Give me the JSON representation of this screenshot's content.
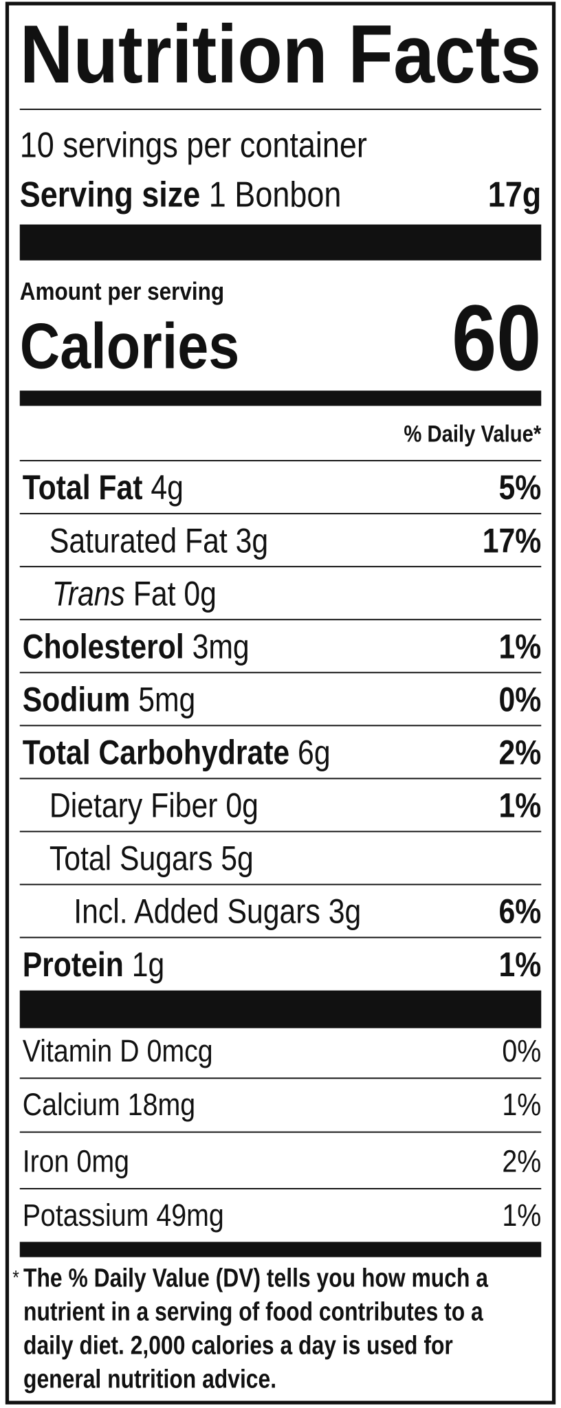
{
  "title": "Nutrition Facts",
  "servings_per_container": "10 servings per container",
  "serving_size": {
    "label": "Serving size",
    "value": "1 Bonbon",
    "weight": "17g"
  },
  "amount_per_serving": "Amount per serving",
  "calories": {
    "label": "Calories",
    "value": "60"
  },
  "daily_value_header": "% Daily Value*",
  "nutrients": [
    {
      "name": "Total Fat",
      "amount": "4g",
      "dv": "5%",
      "level": 0
    },
    {
      "name": "Saturated Fat",
      "amount": "3g",
      "dv": "17%",
      "level": 1
    },
    {
      "name_italic": "Trans",
      "name": "Fat",
      "amount": "0g",
      "level": 1
    },
    {
      "name": "Cholesterol",
      "amount": "3mg",
      "dv": "1%",
      "level": 0
    },
    {
      "name": "Sodium",
      "amount": "5mg",
      "dv": "0%",
      "level": 0
    },
    {
      "name": "Total Carbohydrate",
      "amount": "6g",
      "dv": "2%",
      "level": 0
    },
    {
      "name": "Dietary Fiber",
      "amount": "0g",
      "dv": "1%",
      "level": 1
    },
    {
      "name": "Total Sugars",
      "amount": "5g",
      "level": 1
    },
    {
      "name": "Incl. Added Sugars",
      "amount": "3g",
      "dv": "6%",
      "level": 2
    },
    {
      "name": "Protein",
      "amount": "1g",
      "dv": "1%",
      "level": 0
    }
  ],
  "vitamins": [
    {
      "name": "Vitamin D",
      "amount": "0mcg",
      "dv": "0%"
    },
    {
      "name": "Calcium",
      "amount": "18mg",
      "dv": "1%"
    },
    {
      "name": "Iron",
      "amount": "0mg",
      "dv": "2%"
    },
    {
      "name": "Potassium",
      "amount": "49mg",
      "dv": "1%"
    }
  ],
  "footnote": {
    "mark": "*",
    "lines": [
      "The % Daily Value (DV) tells you how much a",
      "nutrient in a serving of food contributes to a",
      "daily diet. 2,000 calories a day is used for",
      "general nutrition advice."
    ]
  }
}
